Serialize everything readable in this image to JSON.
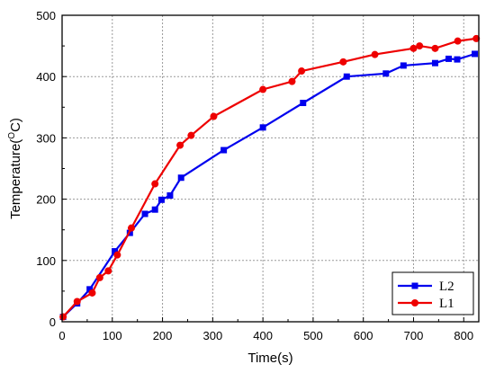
{
  "chart_data": {
    "type": "line",
    "title": "",
    "xlabel": "Time(s)",
    "ylabel": "Temperature(",
    "ylabel_unit_sup": "O",
    "ylabel_unit": "C)",
    "xlim": [
      0,
      830
    ],
    "ylim": [
      0,
      500
    ],
    "xticks": [
      0,
      100,
      200,
      300,
      400,
      500,
      600,
      700,
      800
    ],
    "yticks": [
      0,
      100,
      200,
      300,
      400,
      500
    ],
    "grid": true,
    "legend_position": "bottom-right",
    "series": [
      {
        "name": "L2",
        "color": "#0000ee",
        "marker": "square",
        "x": [
          2,
          30,
          55,
          105,
          135,
          165,
          185,
          198,
          215,
          237,
          322,
          400,
          480,
          567,
          645,
          680,
          743,
          770,
          787,
          822
        ],
        "y": [
          8,
          30,
          53,
          115,
          145,
          176,
          183,
          199,
          206,
          235,
          280,
          317,
          357,
          400,
          405,
          418,
          422,
          429,
          428,
          437
        ]
      },
      {
        "name": "L1",
        "color": "#ee0000",
        "marker": "circle",
        "x": [
          2,
          30,
          60,
          75,
          92,
          110,
          138,
          185,
          235,
          257,
          302,
          400,
          458,
          477,
          560,
          623,
          700,
          712,
          743,
          788,
          825
        ],
        "y": [
          8,
          33,
          47,
          72,
          83,
          109,
          153,
          225,
          288,
          304,
          335,
          379,
          392,
          409,
          424,
          436,
          446,
          450,
          446,
          458,
          462
        ]
      }
    ]
  }
}
